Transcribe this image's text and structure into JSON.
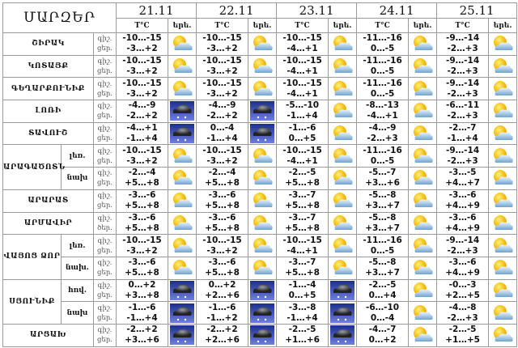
{
  "header": {
    "title": "ՄԱՐԶԵՐ",
    "temp_label": "T°C",
    "icon_label": "երե."
  },
  "dates": [
    "21.11",
    "22.11",
    "23.11",
    "24.11",
    "25.11"
  ],
  "icons": {
    "p": "partly-cloudy-icon",
    "s": "snow-cloud-icon"
  },
  "regions": [
    {
      "name": "ՇԻՐԱԿ",
      "rows": [
        {
          "sub": "",
          "labels": [
            "գիշ.",
            "ցեր."
          ],
          "days": [
            [
              "-10…-15",
              "-3…+2",
              "p"
            ],
            [
              "-10…-15",
              "-3…+2",
              "p"
            ],
            [
              "-10…-15",
              "-4…+1",
              "p"
            ],
            [
              "-11…-16",
              "0…-5",
              "p"
            ],
            [
              "-9…-14",
              "-2…+3",
              "p"
            ]
          ]
        }
      ]
    },
    {
      "name": "ԿՈՏԱՅՔ",
      "rows": [
        {
          "sub": "",
          "labels": [
            "գիշ.",
            "ցեր."
          ],
          "days": [
            [
              "-10…-15",
              "-3…+2",
              "p"
            ],
            [
              "-10…-15",
              "-3…+2",
              "p"
            ],
            [
              "-10…-15",
              "-4…+1",
              "p"
            ],
            [
              "-11…-16",
              "0…-5",
              "p"
            ],
            [
              "-9…-14",
              "-2…+3",
              "p"
            ]
          ]
        }
      ]
    },
    {
      "name": "ԳԵՂԱՐՔՈՒՆԻՔ",
      "rows": [
        {
          "sub": "",
          "labels": [
            "գիշ.",
            "ցեր."
          ],
          "days": [
            [
              "-10…-15",
              "-3…+2",
              "p"
            ],
            [
              "-10…-15",
              "-3…+2",
              "p"
            ],
            [
              "-10…-15",
              "-4…+1",
              "p"
            ],
            [
              "-11…-16",
              "0…-5",
              "p"
            ],
            [
              "-9…-14",
              "-2…+3",
              "p"
            ]
          ]
        }
      ]
    },
    {
      "name": "ԼՈՌԻ",
      "rows": [
        {
          "sub": "",
          "labels": [
            "գիշ.",
            "ցեր."
          ],
          "days": [
            [
              "-4…-9",
              "-2…+2",
              "s"
            ],
            [
              "-4…-9",
              "-2…+2",
              "s"
            ],
            [
              "-5…-10",
              "-1…+4",
              "p"
            ],
            [
              "-8…-13",
              "-4…+1",
              "p"
            ],
            [
              "-6…-11",
              "-2…+3",
              "p"
            ]
          ]
        }
      ]
    },
    {
      "name": "ՏԱՎՈՒՇ",
      "rows": [
        {
          "sub": "",
          "labels": [
            "գիշ.",
            "ցեր."
          ],
          "days": [
            [
              "-4…+1",
              "-1…+4",
              "s"
            ],
            [
              "0…-4",
              "-1…+4",
              "s"
            ],
            [
              "-1…-6",
              "0…+5",
              "p"
            ],
            [
              "-4…-9",
              "-2…+3",
              "p"
            ],
            [
              "-2…-7",
              "-1…+4",
              "p"
            ]
          ]
        }
      ]
    },
    {
      "name": "ԱՐԱԳԱԾՈՏՆ",
      "rows": [
        {
          "sub": "լեռ.",
          "labels": [
            "գիշ.",
            "ցեր."
          ],
          "days": [
            [
              "-10…-15",
              "-3…+2",
              "p"
            ],
            [
              "-10…-15",
              "-3…+2",
              "p"
            ],
            [
              "-10…-15",
              "-4…+1",
              "p"
            ],
            [
              "-11…-16",
              "0…-5",
              "p"
            ],
            [
              "-9…-14",
              "-2…+3",
              "p"
            ]
          ]
        },
        {
          "sub": "նախ",
          "labels": [
            "գիշ.",
            "ցեր."
          ],
          "days": [
            [
              "-2…-4",
              "+5…+8",
              "p"
            ],
            [
              "-2…-4",
              "+5…+8",
              "p"
            ],
            [
              "-2…-5",
              "+5…+8",
              "p"
            ],
            [
              "-5…-7",
              "+3…+6",
              "p"
            ],
            [
              "-3…-5",
              "+4…+7",
              "p"
            ]
          ]
        }
      ]
    },
    {
      "name": "ԱՐԱՐԱՏ",
      "rows": [
        {
          "sub": "",
          "labels": [
            "գիշ.",
            "ցեր."
          ],
          "days": [
            [
              "-3…-6",
              "+5…+8",
              "p"
            ],
            [
              "-3…-6",
              "+5…+8",
              "p"
            ],
            [
              "-3…-7",
              "+5…+8",
              "p"
            ],
            [
              "-5…-8",
              "+3…+7",
              "p"
            ],
            [
              "-3…-6",
              "+4…+9",
              "p"
            ]
          ]
        }
      ]
    },
    {
      "name": "ԱՐՄԱՎԻՐ",
      "rows": [
        {
          "sub": "",
          "labels": [
            "գիշ.",
            "ծեր."
          ],
          "days": [
            [
              "-3…-6",
              "+5…+8",
              "p"
            ],
            [
              "-3…-6",
              "+5…+8",
              "p"
            ],
            [
              "-3…-7",
              "+5…+8",
              "p"
            ],
            [
              "-5…-8",
              "+3…+7",
              "p"
            ],
            [
              "-3…-6",
              "+4…+9",
              "p"
            ]
          ]
        }
      ]
    },
    {
      "name": "ՎԱՅՈՑ ՁՈՐ",
      "rows": [
        {
          "sub": "լեռ.",
          "labels": [
            "գիշ.",
            "ցեր."
          ],
          "days": [
            [
              "-10…-15",
              "-3…+2",
              "p"
            ],
            [
              "-10…-15",
              "-3…+2",
              "p"
            ],
            [
              "-10…-15",
              "-4…+1",
              "p"
            ],
            [
              "-11…-16",
              "0…-5",
              "p"
            ],
            [
              "-9…-14",
              "-2…+3",
              "p"
            ]
          ]
        },
        {
          "sub": "նախ.",
          "labels": [
            "գիշ.",
            "ցեր."
          ],
          "days": [
            [
              "-3…-6",
              "+5…+8",
              "p"
            ],
            [
              "-3…-6",
              "+5…+8",
              "p"
            ],
            [
              "-3…-7",
              "+5…+8",
              "p"
            ],
            [
              "-5…-8",
              "+3…+7",
              "p"
            ],
            [
              "-3…-6",
              "+4…+9",
              "p"
            ]
          ]
        }
      ]
    },
    {
      "name": "ՍՅՈՒՆԻՔ",
      "rows": [
        {
          "sub": "հով.",
          "labels": [
            "գիշ.",
            "ցեր."
          ],
          "days": [
            [
              "0…+2",
              "+3…+8",
              "s"
            ],
            [
              "0…+2",
              "+2…+6",
              "s"
            ],
            [
              "-1…-4",
              "0…+5",
              "s"
            ],
            [
              "-2…-5",
              "0…+4",
              "p"
            ],
            [
              "-0…-3",
              "+2…+5",
              "p"
            ]
          ]
        },
        {
          "sub": "նախ",
          "labels": [
            "գիշ.",
            "ցեր."
          ],
          "days": [
            [
              "-1…-6",
              "-1…+4",
              "s"
            ],
            [
              "-1…-6",
              "-1…+2",
              "s"
            ],
            [
              "-3…-8",
              "-1…+4",
              "s"
            ],
            [
              "-6…-10",
              "0…-4",
              "p"
            ],
            [
              "-4…-8",
              "-2…+3",
              "p"
            ]
          ]
        }
      ]
    },
    {
      "name": "ԱՐՑԱԽ",
      "rows": [
        {
          "sub": "",
          "labels": [
            "գիշ.",
            "ցեր."
          ],
          "days": [
            [
              "-2…+2",
              "+3…+6",
              "s"
            ],
            [
              "-2…+2",
              "+2…+6",
              "s"
            ],
            [
              "-2…-5",
              "+1…+6",
              "s"
            ],
            [
              "-4…-7",
              "0…+2",
              "p"
            ],
            [
              "-2…-5",
              "+1…+5",
              "p"
            ]
          ]
        }
      ]
    }
  ]
}
